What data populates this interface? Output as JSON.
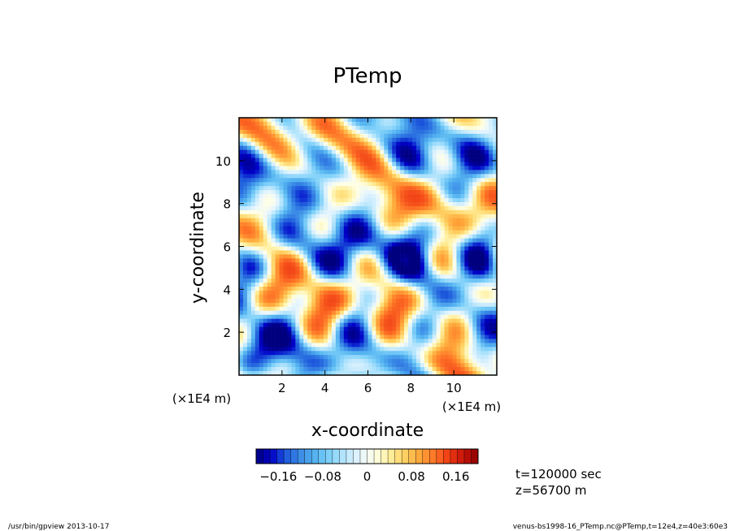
{
  "chart_data": {
    "type": "heatmap",
    "title": "PTemp",
    "xlabel": "x-coordinate",
    "ylabel": "y-coordinate",
    "xlim": [
      0,
      12
    ],
    "ylim": [
      0,
      12
    ],
    "x_ticks": [
      2,
      4,
      6,
      8,
      10
    ],
    "y_ticks": [
      2,
      4,
      6,
      8,
      10
    ],
    "x_tick_labels": [
      "2",
      "4",
      "6",
      "8",
      "10"
    ],
    "y_tick_labels": [
      "2",
      "4",
      "6",
      "8",
      "10"
    ],
    "x_unit": "(×1E4 m)",
    "y_unit": "(×1E4 m)",
    "colorbar": {
      "range": [
        -0.2,
        0.2
      ],
      "ticks": [
        -0.16,
        -0.08,
        0,
        0.08,
        0.16
      ],
      "tick_labels": [
        "−0.16",
        "−0.08",
        "0",
        "0.08",
        "0.16"
      ],
      "levels": 32,
      "palette": [
        "#00007f",
        "#0000c8",
        "#1e5adc",
        "#3c8ce6",
        "#55b4f0",
        "#82d2fa",
        "#b9e6fc",
        "#e6f5ff",
        "#ffffe6",
        "#fff0a0",
        "#ffd264",
        "#ffaa3c",
        "#ff7828",
        "#f03c14",
        "#c8140a",
        "#8c0000"
      ]
    },
    "annotations": [
      "t=120000 sec",
      "z=56700 m"
    ],
    "values_note": ""
  },
  "footer": {
    "left": "/usr/bin/gpview   2013-10-17",
    "right": "venus-bs1998-16_PTemp.nc@PTemp,t=12e4,z=40e3:60e3"
  }
}
